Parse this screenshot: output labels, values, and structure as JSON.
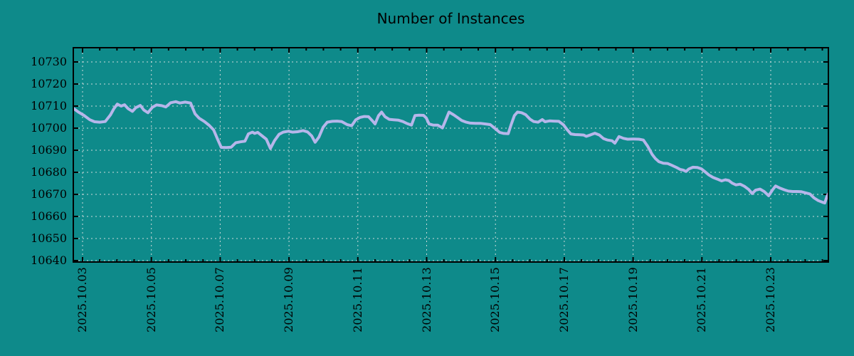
{
  "chart_data": {
    "type": "line",
    "title": "Number of Instances",
    "xlabel": "",
    "ylabel": "",
    "ylim": [
      10640,
      10730
    ],
    "xlim_days": [
      -0.27,
      21.67
    ],
    "grid": "dotted",
    "legend": "none",
    "background_color": "#0e8a8a",
    "line_color": "#b6b6ea",
    "grid_color": "#ccd9d9",
    "text_color": "#000000",
    "y_ticks": [
      10640,
      10650,
      10660,
      10670,
      10680,
      10690,
      10700,
      10710,
      10720,
      10730
    ],
    "x_tick_days": [
      0,
      2,
      4,
      6,
      8,
      10,
      12,
      14,
      16,
      18,
      20
    ],
    "x_tick_labels": [
      "2025.10.03",
      "2025.10.05",
      "2025.10.07",
      "2025.10.09",
      "2025.10.11",
      "2025.10.13",
      "2025.10.15",
      "2025.10.17",
      "2025.10.19",
      "2025.10.21",
      "2025.10.23"
    ],
    "minor_tick_step_days": 0.5,
    "series": [
      {
        "name": "instances",
        "points": [
          [
            -0.27,
            10709
          ],
          [
            -0.12,
            10707.3
          ],
          [
            0.04,
            10705.8
          ],
          [
            0.21,
            10703.8
          ],
          [
            0.35,
            10702.9
          ],
          [
            0.5,
            10702.7
          ],
          [
            0.66,
            10703
          ],
          [
            0.81,
            10706
          ],
          [
            0.91,
            10708.8
          ],
          [
            1.01,
            10710.9
          ],
          [
            1.12,
            10710
          ],
          [
            1.22,
            10710.6
          ],
          [
            1.32,
            10708.9
          ],
          [
            1.45,
            10707.6
          ],
          [
            1.55,
            10709.3
          ],
          [
            1.68,
            10710.3
          ],
          [
            1.78,
            10708.2
          ],
          [
            1.9,
            10707
          ],
          [
            2.03,
            10709.5
          ],
          [
            2.15,
            10710.5
          ],
          [
            2.3,
            10710.2
          ],
          [
            2.42,
            10709.6
          ],
          [
            2.56,
            10711.5
          ],
          [
            2.71,
            10712
          ],
          [
            2.83,
            10711.4
          ],
          [
            2.98,
            10711.8
          ],
          [
            3.14,
            10711.4
          ],
          [
            3.27,
            10706.5
          ],
          [
            3.39,
            10704.5
          ],
          [
            3.54,
            10703
          ],
          [
            3.68,
            10701.3
          ],
          [
            3.81,
            10699.2
          ],
          [
            3.93,
            10694.8
          ],
          [
            4.03,
            10691.3
          ],
          [
            4.18,
            10691.2
          ],
          [
            4.32,
            10691.4
          ],
          [
            4.45,
            10693.4
          ],
          [
            4.59,
            10693.8
          ],
          [
            4.72,
            10694.1
          ],
          [
            4.82,
            10697.4
          ],
          [
            4.94,
            10698.2
          ],
          [
            5,
            10697.6
          ],
          [
            5.09,
            10698.1
          ],
          [
            5.21,
            10696.6
          ],
          [
            5.34,
            10695
          ],
          [
            5.46,
            10690.8
          ],
          [
            5.58,
            10694.4
          ],
          [
            5.71,
            10697.2
          ],
          [
            5.83,
            10698.2
          ],
          [
            5.98,
            10698.6
          ],
          [
            6.1,
            10698.2
          ],
          [
            6.25,
            10698.4
          ],
          [
            6.41,
            10698.9
          ],
          [
            6.54,
            10698.3
          ],
          [
            6.66,
            10696.5
          ],
          [
            6.76,
            10693.6
          ],
          [
            6.87,
            10696
          ],
          [
            6.99,
            10700.4
          ],
          [
            7.11,
            10702.7
          ],
          [
            7.26,
            10703.1
          ],
          [
            7.4,
            10703.2
          ],
          [
            7.53,
            10703
          ],
          [
            7.69,
            10701.6
          ],
          [
            7.82,
            10701.1
          ],
          [
            7.94,
            10703.8
          ],
          [
            8.07,
            10704.9
          ],
          [
            8.19,
            10705.3
          ],
          [
            8.31,
            10705.2
          ],
          [
            8.42,
            10703.4
          ],
          [
            8.5,
            10701.9
          ],
          [
            8.6,
            10705.6
          ],
          [
            8.69,
            10707.3
          ],
          [
            8.79,
            10705.2
          ],
          [
            8.91,
            10704
          ],
          [
            9.04,
            10703.8
          ],
          [
            9.18,
            10703.6
          ],
          [
            9.31,
            10703
          ],
          [
            9.43,
            10702.1
          ],
          [
            9.56,
            10701.4
          ],
          [
            9.66,
            10705.7
          ],
          [
            9.78,
            10705.9
          ],
          [
            9.91,
            10705.8
          ],
          [
            9.99,
            10704.6
          ],
          [
            10.07,
            10701.9
          ],
          [
            10.19,
            10701.4
          ],
          [
            10.32,
            10701.4
          ],
          [
            10.46,
            10700.1
          ],
          [
            10.55,
            10703.5
          ],
          [
            10.65,
            10707.3
          ],
          [
            10.78,
            10706.1
          ],
          [
            10.9,
            10704.8
          ],
          [
            11.02,
            10703.5
          ],
          [
            11.15,
            10702.7
          ],
          [
            11.27,
            10702.3
          ],
          [
            11.42,
            10702.2
          ],
          [
            11.56,
            10702.2
          ],
          [
            11.71,
            10701.9
          ],
          [
            11.85,
            10701.6
          ],
          [
            12,
            10699.7
          ],
          [
            12.12,
            10698.1
          ],
          [
            12.24,
            10697.6
          ],
          [
            12.37,
            10697.5
          ],
          [
            12.45,
            10701.4
          ],
          [
            12.55,
            10705.7
          ],
          [
            12.64,
            10707.3
          ],
          [
            12.76,
            10707
          ],
          [
            12.88,
            10706.1
          ],
          [
            13.01,
            10704
          ],
          [
            13.11,
            10703
          ],
          [
            13.24,
            10702.7
          ],
          [
            13.36,
            10703.9
          ],
          [
            13.44,
            10702.9
          ],
          [
            13.57,
            10703.3
          ],
          [
            13.69,
            10703.2
          ],
          [
            13.84,
            10703.1
          ],
          [
            13.98,
            10701.5
          ],
          [
            14.08,
            10699.4
          ],
          [
            14.19,
            10697.4
          ],
          [
            14.31,
            10697.1
          ],
          [
            14.44,
            10697
          ],
          [
            14.56,
            10696.9
          ],
          [
            14.64,
            10696.3
          ],
          [
            14.77,
            10697
          ],
          [
            14.89,
            10697.7
          ],
          [
            15.02,
            10696.9
          ],
          [
            15.14,
            10695.3
          ],
          [
            15.26,
            10694.6
          ],
          [
            15.39,
            10694.3
          ],
          [
            15.47,
            10693.2
          ],
          [
            15.59,
            10696.2
          ],
          [
            15.72,
            10695.4
          ],
          [
            15.84,
            10695
          ],
          [
            16.01,
            10695.1
          ],
          [
            16.17,
            10695
          ],
          [
            16.3,
            10694.6
          ],
          [
            16.42,
            10691.9
          ],
          [
            16.55,
            10688.2
          ],
          [
            16.65,
            10686.2
          ],
          [
            16.75,
            10684.8
          ],
          [
            16.88,
            10684.1
          ],
          [
            17,
            10684
          ],
          [
            17.12,
            10683.2
          ],
          [
            17.25,
            10682.3
          ],
          [
            17.37,
            10681.3
          ],
          [
            17.46,
            10681
          ],
          [
            17.54,
            10680.4
          ],
          [
            17.62,
            10681.5
          ],
          [
            17.74,
            10682.3
          ],
          [
            17.87,
            10682.2
          ],
          [
            17.99,
            10681.5
          ],
          [
            18.08,
            10680.4
          ],
          [
            18.2,
            10678.8
          ],
          [
            18.32,
            10677.7
          ],
          [
            18.45,
            10676.9
          ],
          [
            18.57,
            10676.1
          ],
          [
            18.68,
            10676.6
          ],
          [
            18.78,
            10676.3
          ],
          [
            18.88,
            10675.1
          ],
          [
            18.99,
            10674.3
          ],
          [
            19.11,
            10674.6
          ],
          [
            19.23,
            10673.7
          ],
          [
            19.36,
            10672.2
          ],
          [
            19.46,
            10670.4
          ],
          [
            19.56,
            10671.9
          ],
          [
            19.69,
            10672.4
          ],
          [
            19.81,
            10671.3
          ],
          [
            19.94,
            10669.4
          ],
          [
            20.06,
            10672.2
          ],
          [
            20.14,
            10673.8
          ],
          [
            20.27,
            10672.8
          ],
          [
            20.39,
            10672.1
          ],
          [
            20.51,
            10671.5
          ],
          [
            20.64,
            10671.3
          ],
          [
            20.76,
            10671.3
          ],
          [
            20.89,
            10671.2
          ],
          [
            21.01,
            10670.7
          ],
          [
            21.14,
            10670.2
          ],
          [
            21.26,
            10668.4
          ],
          [
            21.38,
            10667.2
          ],
          [
            21.51,
            10666.4
          ],
          [
            21.57,
            10666.1
          ],
          [
            21.63,
            10668.9
          ],
          [
            21.67,
            10670.2
          ]
        ]
      }
    ]
  }
}
